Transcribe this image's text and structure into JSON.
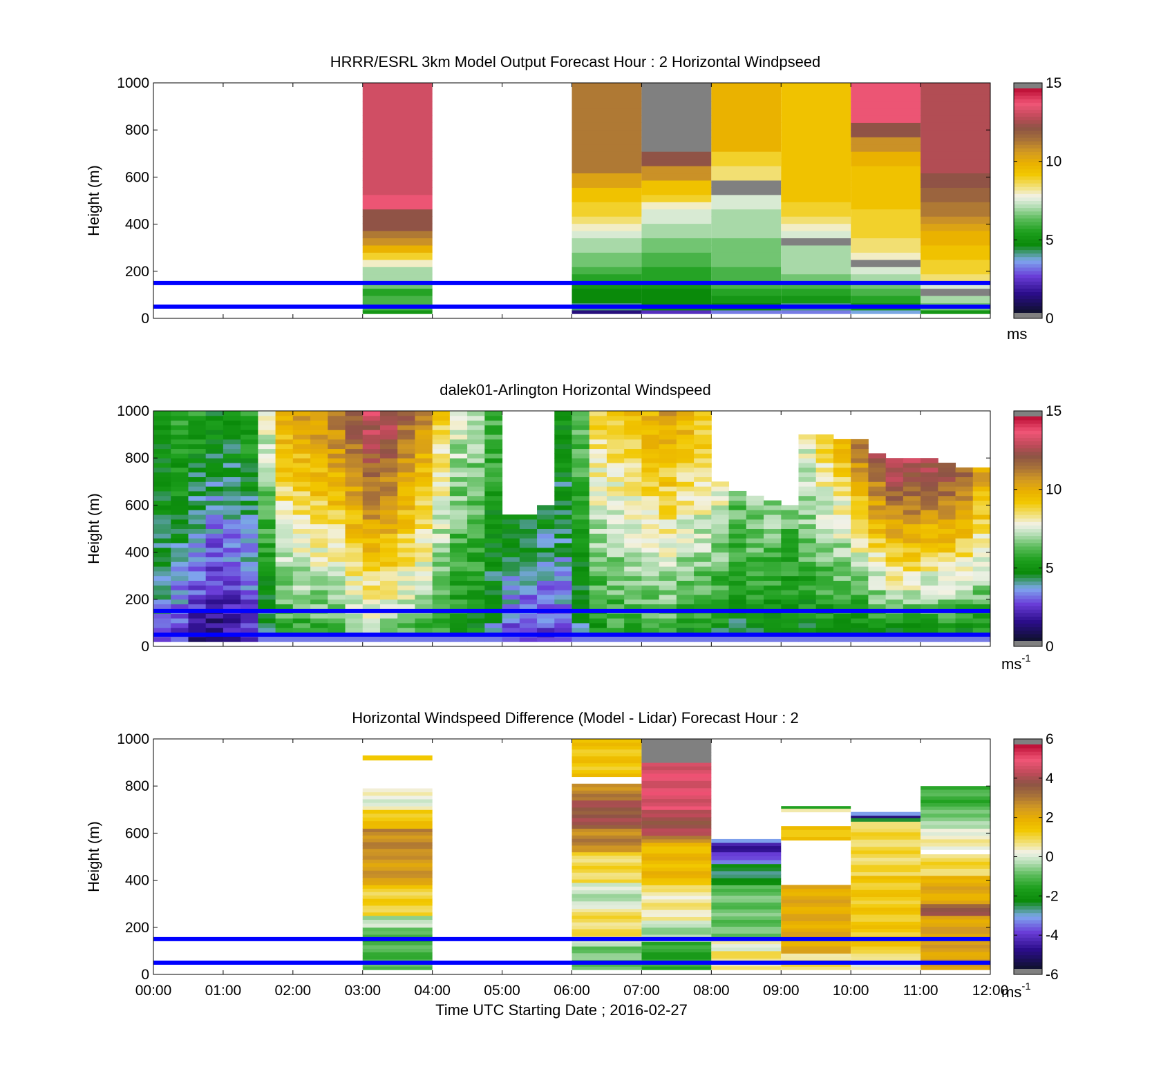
{
  "chart_data": [
    {
      "type": "heatmap",
      "title": "HRRR/ESRL 3km Model Output   Forecast Hour : 2 Horizontal Windpseed",
      "ylabel": "Height (m)",
      "ylim": [
        0,
        1000
      ],
      "yticks": [
        "0",
        "200",
        "400",
        "600",
        "800",
        "1000"
      ],
      "xlim_hours": [
        0,
        12
      ],
      "colorbar": {
        "min": 0,
        "max": 15,
        "ticks": [
          "0",
          "5",
          "10",
          "15"
        ],
        "unit_base": "ms",
        "unit_sup": ""
      },
      "reference_lines_m": [
        50,
        150
      ],
      "reference_line_color": "#0000ff",
      "columns": [
        {
          "t0": 3,
          "t1": 4,
          "bottom": 20,
          "top": 1000,
          "values": [
            5,
            6,
            6,
            5.5,
            6.5,
            7,
            7,
            8,
            9,
            10,
            11,
            11.5,
            12.5,
            12.5,
            12.5,
            14,
            14,
            13.5,
            13.5,
            13.5,
            13.5,
            13.5,
            13.5,
            13.5,
            13.5,
            13.5,
            13.5,
            13.5,
            13.5,
            13.5,
            13.5,
            13.5,
            13.5
          ]
        },
        {
          "t0": 6,
          "t1": 7,
          "bottom": 20,
          "top": 1000,
          "values": [
            1,
            4,
            4.5,
            4.5,
            5,
            5.5,
            6,
            6.5,
            6.5,
            7,
            7,
            7.5,
            8,
            8.5,
            9,
            9,
            9.5,
            9.5,
            10.5,
            10.5,
            11.5,
            11.5,
            11.5,
            11.5,
            11.5,
            11.5,
            11.5,
            11.5,
            11.5,
            11.5,
            11.5,
            11.5,
            11.5
          ]
        },
        {
          "t0": 7,
          "t1": 8,
          "bottom": 20,
          "top": 1000,
          "values": [
            2,
            4.5,
            4.5,
            4.5,
            5,
            5.5,
            5.5,
            6,
            6,
            6.5,
            6.5,
            7,
            7,
            7.5,
            7.5,
            8,
            9,
            9.5,
            9.5,
            11,
            11,
            12.5,
            12.5,
            15.5,
            15.5,
            15.5,
            15.5,
            15.5,
            15.5,
            15.5,
            15.5,
            15.5,
            15.5
          ]
        },
        {
          "t0": 8,
          "t1": 9,
          "bottom": 20,
          "top": 1000,
          "values": [
            3,
            4.5,
            5,
            5.5,
            6,
            6,
            6,
            6.5,
            6.5,
            6.5,
            6.5,
            7,
            7,
            7,
            7,
            7.5,
            7.5,
            15.5,
            15.5,
            8.5,
            8.5,
            9,
            9,
            10,
            10,
            10,
            10,
            10,
            10,
            10,
            10,
            10,
            10
          ]
        },
        {
          "t0": 9,
          "t1": 10,
          "bottom": 20,
          "top": 1000,
          "values": [
            3,
            4,
            5,
            5.5,
            6,
            6.5,
            7,
            7,
            7,
            7,
            15.5,
            7.5,
            8,
            8.5,
            9,
            9,
            9.5,
            9.5,
            9.5,
            9.5,
            9.5,
            9.5,
            9.5,
            9.5,
            9.5,
            9.5,
            9.5,
            9.5,
            9.5,
            9.5,
            9.5,
            9.5,
            9.5
          ]
        },
        {
          "t0": 10,
          "t1": 11,
          "bottom": 20,
          "top": 1000,
          "values": [
            3.5,
            5,
            5.5,
            6,
            6.5,
            7,
            7.5,
            15.5,
            8,
            8.5,
            8.5,
            9,
            9,
            9,
            9,
            9.5,
            9.5,
            9.5,
            9.5,
            9.5,
            9.5,
            10,
            10,
            11,
            11,
            12.5,
            12.5,
            14,
            14,
            14,
            14,
            14,
            14
          ]
        },
        {
          "t0": 11,
          "t1": 12,
          "bottom": 20,
          "top": 1000,
          "values": [
            5,
            6.5,
            7,
            15.5,
            7.5,
            8.5,
            9,
            9,
            9.5,
            9.5,
            10,
            10,
            10.5,
            11,
            11.5,
            11.5,
            12,
            12,
            12.5,
            12.5,
            13,
            13,
            13,
            13,
            13,
            13,
            13,
            13,
            13,
            13,
            13,
            13,
            13
          ]
        }
      ]
    },
    {
      "type": "heatmap",
      "title": "dalek01-Arlington  Horizontal Windspeed",
      "ylabel": "Height (m)",
      "ylim": [
        0,
        1000
      ],
      "yticks": [
        "0",
        "200",
        "400",
        "600",
        "800",
        "1000"
      ],
      "xlim_hours": [
        0,
        12
      ],
      "colorbar": {
        "min": 0,
        "max": 15,
        "ticks": [
          "0",
          "5",
          "10",
          "15"
        ],
        "unit_base": "ms",
        "unit_sup": "-1"
      },
      "reference_lines_m": [
        50,
        150
      ],
      "reference_line_color": "#0000ff",
      "columns_per_hour": 4,
      "profiles": [
        {
          "lo": 3.0,
          "hi": 5.0,
          "top": 1000
        },
        {
          "lo": 2.0,
          "hi": 6.0,
          "top": 1000
        },
        {
          "lo": 1.0,
          "hi": 5.5,
          "top": 1000
        },
        {
          "lo": 0.5,
          "hi": 5.0,
          "top": 1000
        },
        {
          "lo": 1.0,
          "hi": 5.0,
          "top": 1000
        },
        {
          "lo": 1.5,
          "hi": 5.5,
          "top": 1000
        },
        {
          "lo": 3.0,
          "hi": 8.0,
          "top": 1000
        },
        {
          "lo": 5.0,
          "hi": 10.0,
          "top": 1000
        },
        {
          "lo": 5.0,
          "hi": 10.5,
          "top": 1000
        },
        {
          "lo": 5.0,
          "hi": 11.0,
          "top": 1000
        },
        {
          "lo": 5.0,
          "hi": 11.5,
          "top": 1000
        },
        {
          "lo": 5.5,
          "hi": 12.5,
          "top": 1000
        },
        {
          "lo": 6.0,
          "hi": 13.5,
          "top": 1000
        },
        {
          "lo": 6.0,
          "hi": 13.0,
          "top": 1000
        },
        {
          "lo": 5.5,
          "hi": 12.0,
          "top": 1000
        },
        {
          "lo": 5.0,
          "hi": 11.0,
          "top": 1000
        },
        {
          "lo": 5.0,
          "hi": 9.0,
          "top": 1000
        },
        {
          "lo": 4.5,
          "hi": 7.5,
          "top": 1000
        },
        {
          "lo": 4.5,
          "hi": 7.0,
          "top": 1000
        },
        {
          "lo": 3.5,
          "hi": 6.0,
          "top": 1000
        },
        {
          "lo": 2.0,
          "hi": 5.0,
          "top": 560
        },
        {
          "lo": 2.0,
          "hi": 4.5,
          "top": 560
        },
        {
          "lo": 2.0,
          "hi": 4.5,
          "top": 600
        },
        {
          "lo": 2.5,
          "hi": 5.0,
          "top": 1000
        },
        {
          "lo": 3.5,
          "hi": 6.5,
          "top": 1000
        },
        {
          "lo": 4.5,
          "hi": 9.0,
          "top": 1000
        },
        {
          "lo": 5.0,
          "hi": 9.0,
          "top": 1000
        },
        {
          "lo": 5.0,
          "hi": 9.5,
          "top": 1000
        },
        {
          "lo": 5.0,
          "hi": 10.0,
          "top": 1000
        },
        {
          "lo": 5.0,
          "hi": 10.5,
          "top": 1000
        },
        {
          "lo": 4.5,
          "hi": 10.0,
          "top": 1000
        },
        {
          "lo": 4.5,
          "hi": 9.5,
          "top": 1000
        },
        {
          "lo": 4.0,
          "hi": 8.0,
          "top": 700
        },
        {
          "lo": 4.0,
          "hi": 6.5,
          "top": 650
        },
        {
          "lo": 4.0,
          "hi": 7.0,
          "top": 640
        },
        {
          "lo": 4.0,
          "hi": 7.0,
          "top": 620
        },
        {
          "lo": 4.0,
          "hi": 6.5,
          "top": 600
        },
        {
          "lo": 4.0,
          "hi": 8.0,
          "top": 900
        },
        {
          "lo": 4.0,
          "hi": 9.0,
          "top": 900
        },
        {
          "lo": 4.0,
          "hi": 9.5,
          "top": 880
        },
        {
          "lo": 3.5,
          "hi": 11.5,
          "top": 880
        },
        {
          "lo": 3.5,
          "hi": 12.5,
          "top": 820
        },
        {
          "lo": 3.5,
          "hi": 13.5,
          "top": 800
        },
        {
          "lo": 3.5,
          "hi": 13.5,
          "top": 800
        },
        {
          "lo": 3.5,
          "hi": 13.0,
          "top": 790
        },
        {
          "lo": 3.5,
          "hi": 13.0,
          "top": 780
        },
        {
          "lo": 3.5,
          "hi": 12.0,
          "top": 760
        },
        {
          "lo": 4.0,
          "hi": 10.5,
          "top": 750
        }
      ]
    },
    {
      "type": "heatmap",
      "title": "Horizontal Windspeed Difference (Model - Lidar) Forecast Hour : 2",
      "xlabel": "Time UTC  Starting Date ; 2016-02-27",
      "ylabel": "Height (m)",
      "ylim": [
        0,
        1000
      ],
      "yticks": [
        "0",
        "200",
        "400",
        "600",
        "800",
        "1000"
      ],
      "xticks": [
        "00:00",
        "01:00",
        "02:00",
        "03:00",
        "04:00",
        "05:00",
        "06:00",
        "07:00",
        "08:00",
        "09:00",
        "10:00",
        "11:00",
        "12:00"
      ],
      "xlim_hours": [
        0,
        12
      ],
      "colorbar": {
        "min": -6,
        "max": 6,
        "ticks": [
          "-6",
          "-4",
          "-2",
          "0",
          "2",
          "4",
          "6"
        ],
        "unit_base": "ms",
        "unit_sup": "-1"
      },
      "reference_lines_m": [
        50,
        150
      ],
      "reference_line_color": "#0000ff",
      "columns": [
        {
          "t0": 3,
          "t1": 4,
          "bottom": 20,
          "segments": [
            {
              "from": 20,
              "to": 200,
              "v": -1.2
            },
            {
              "from": 200,
              "to": 250,
              "v": -0.3
            },
            {
              "from": 250,
              "to": 380,
              "v": 1.2
            },
            {
              "from": 380,
              "to": 520,
              "v": 2.6
            },
            {
              "from": 520,
              "to": 620,
              "v": 2.9
            },
            {
              "from": 620,
              "to": 700,
              "v": 1.5
            },
            {
              "from": 700,
              "to": 790,
              "v": 0.2
            },
            {
              "from": 910,
              "to": 930,
              "v": 1.6
            }
          ]
        },
        {
          "t0": 6,
          "t1": 7,
          "bottom": 20,
          "segments": [
            {
              "from": 20,
              "to": 120,
              "v": -0.8
            },
            {
              "from": 120,
              "to": 150,
              "v": 0.1
            },
            {
              "from": 150,
              "to": 280,
              "v": 0.9
            },
            {
              "from": 280,
              "to": 390,
              "v": -0.2
            },
            {
              "from": 390,
              "to": 520,
              "v": 1.0
            },
            {
              "from": 520,
              "to": 620,
              "v": 3.0
            },
            {
              "from": 620,
              "to": 740,
              "v": 4.0
            },
            {
              "from": 740,
              "to": 810,
              "v": 3.0
            },
            {
              "from": 840,
              "to": 1000,
              "v": 1.5
            }
          ]
        },
        {
          "t0": 7,
          "t1": 8,
          "bottom": 20,
          "segments": [
            {
              "from": 20,
              "to": 140,
              "v": -1.6
            },
            {
              "from": 140,
              "to": 230,
              "v": -0.4
            },
            {
              "from": 230,
              "to": 380,
              "v": 0.6
            },
            {
              "from": 380,
              "to": 560,
              "v": 1.8
            },
            {
              "from": 560,
              "to": 590,
              "v": 3.0
            },
            {
              "from": 590,
              "to": 700,
              "v": 4.2
            },
            {
              "from": 700,
              "to": 900,
              "v": 5.0
            },
            {
              "from": 900,
              "to": 1000,
              "v": 6.5
            }
          ]
        },
        {
          "t0": 8,
          "t1": 9,
          "bottom": 20,
          "segments": [
            {
              "from": 20,
              "to": 100,
              "v": 0.8
            },
            {
              "from": 100,
              "to": 160,
              "v": 0.3
            },
            {
              "from": 160,
              "to": 380,
              "v": -0.9
            },
            {
              "from": 380,
              "to": 470,
              "v": -2.6
            },
            {
              "from": 470,
              "to": 520,
              "v": -3.8
            },
            {
              "from": 520,
              "to": 560,
              "v": -4.7
            },
            {
              "from": 560,
              "to": 575,
              "v": -3.0
            }
          ]
        },
        {
          "t0": 9,
          "t1": 10,
          "bottom": 20,
          "segments": [
            {
              "from": 20,
              "to": 90,
              "v": 0.8
            },
            {
              "from": 90,
              "to": 380,
              "v": 2.2
            },
            {
              "from": 570,
              "to": 630,
              "v": 1.6
            },
            {
              "from": 690,
              "to": 705,
              "v": 0.8
            },
            {
              "from": 705,
              "to": 715,
              "v": -1.4
            }
          ]
        },
        {
          "t0": 10,
          "t1": 11,
          "bottom": 20,
          "segments": [
            {
              "from": 20,
              "to": 90,
              "v": 0.4
            },
            {
              "from": 90,
              "to": 420,
              "v": 1.4
            },
            {
              "from": 420,
              "to": 620,
              "v": 1.0
            },
            {
              "from": 620,
              "to": 650,
              "v": 0.5
            },
            {
              "from": 650,
              "to": 665,
              "v": -2.8
            },
            {
              "from": 665,
              "to": 675,
              "v": -5.0
            },
            {
              "from": 675,
              "to": 690,
              "v": -3.0
            }
          ]
        },
        {
          "t0": 11,
          "t1": 12,
          "bottom": 20,
          "segments": [
            {
              "from": 20,
              "to": 250,
              "v": 2.4
            },
            {
              "from": 250,
              "to": 300,
              "v": 3.8
            },
            {
              "from": 300,
              "to": 420,
              "v": 2.2
            },
            {
              "from": 420,
              "to": 510,
              "v": 1.0
            },
            {
              "from": 530,
              "to": 620,
              "v": 0.4
            },
            {
              "from": 620,
              "to": 700,
              "v": -0.6
            },
            {
              "from": 700,
              "to": 800,
              "v": -1.3
            }
          ]
        }
      ]
    }
  ]
}
